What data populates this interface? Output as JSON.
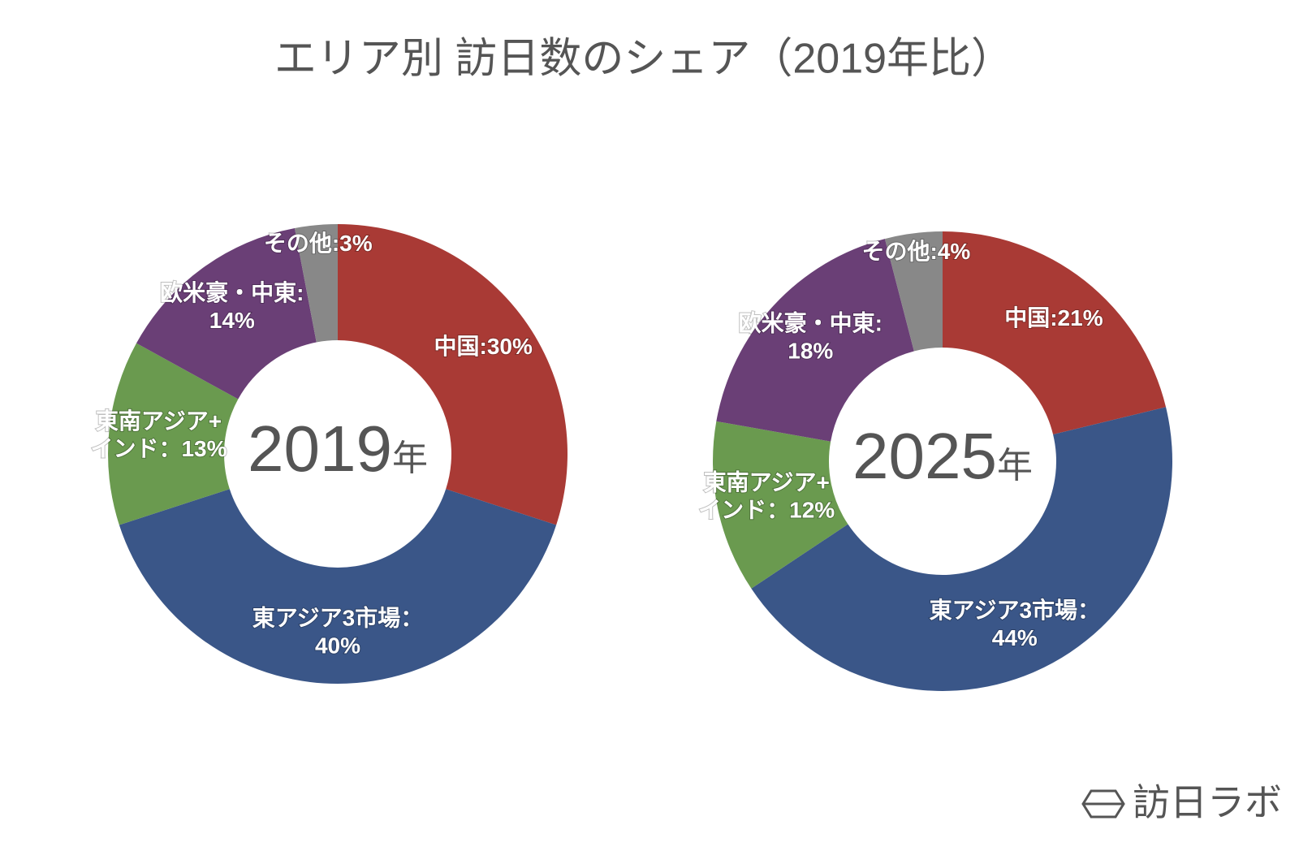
{
  "title": "エリア別 訪日数のシェア（2019年比）",
  "chart_data": [
    {
      "type": "donut",
      "center_label": [
        "2019",
        "年"
      ],
      "values": [
        30,
        40,
        13,
        14,
        3
      ],
      "value_labels": [
        [
          "中国:30%"
        ],
        [
          "東アジア3市場：",
          "40%"
        ],
        [
          "東南アジア+",
          "インド：13%"
        ],
        [
          "欧米豪・中東:",
          "14%"
        ],
        [
          "その他:3%"
        ]
      ],
      "colors": [
        "#a93a35",
        "#3a5688",
        "#6a9a4f",
        "#6a3f76",
        "#888888"
      ]
    },
    {
      "type": "donut",
      "center_label": [
        "2025",
        "年"
      ],
      "values": [
        21,
        44,
        12,
        18,
        4
      ],
      "value_labels": [
        [
          "中国:21%"
        ],
        [
          "東アジア3市場：",
          "44%"
        ],
        [
          "東南アジア+",
          "インド：12%"
        ],
        [
          "欧米豪・中東:",
          "18%"
        ],
        [
          "その他:4%"
        ]
      ],
      "colors": [
        "#a93a35",
        "#3a5688",
        "#6a9a4f",
        "#6a3f76",
        "#888888"
      ]
    }
  ],
  "watermark": "訪日ラボ"
}
